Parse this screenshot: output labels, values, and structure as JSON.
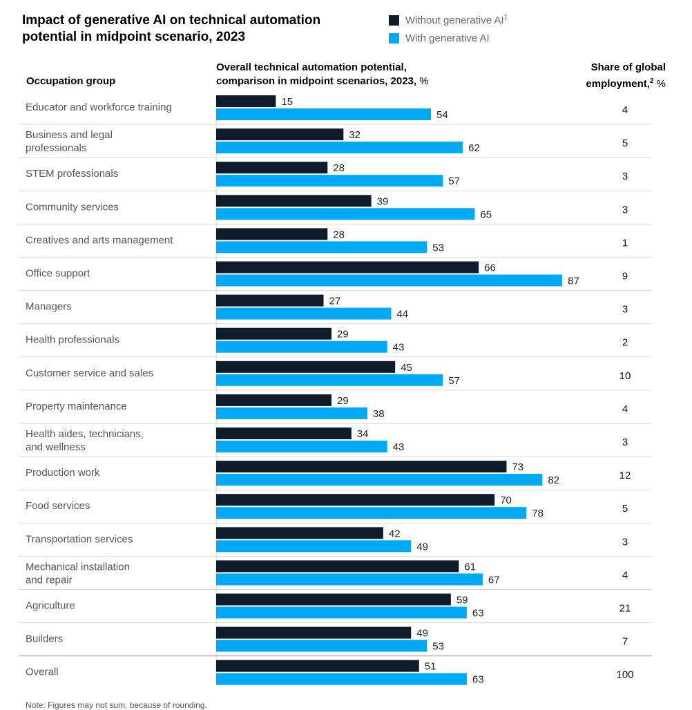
{
  "title": "Impact of generative AI on technical automation potential in midpoint scenario, 2023",
  "legend": [
    {
      "label": "Without generative AI",
      "sup": "1",
      "color": "#0e1c2b"
    },
    {
      "label": "With generative AI",
      "sup": "",
      "color": "#00a9f4"
    }
  ],
  "headers": {
    "occupation": "Occupation group",
    "potential": "Overall technical automation potential, comparison in midpoint scenarios, 2023,",
    "potential_unit": "%",
    "share": "Share of global employment,",
    "share_sup": "2",
    "share_unit": "%"
  },
  "chart_data": {
    "type": "bar",
    "orientation": "horizontal",
    "categories": [
      "Educator and workforce training",
      "Business and legal professionals",
      "STEM professionals",
      "Community services",
      "Creatives and arts management",
      "Office support",
      "Managers",
      "Health professionals",
      "Customer service and sales",
      "Property maintenance",
      "Health aides, technicians, and wellness",
      "Production work",
      "Food services",
      "Transportation services",
      "Mechanical installation and repair",
      "Agriculture",
      "Builders",
      "Overall"
    ],
    "series": [
      {
        "name": "Without generative AI",
        "color": "#0e1c2b",
        "values": [
          15,
          32,
          28,
          39,
          28,
          66,
          27,
          29,
          45,
          29,
          34,
          73,
          70,
          42,
          61,
          59,
          49,
          51
        ]
      },
      {
        "name": "With generative AI",
        "color": "#00a9f4",
        "values": [
          54,
          62,
          57,
          65,
          53,
          87,
          44,
          43,
          57,
          38,
          43,
          82,
          78,
          49,
          67,
          63,
          53,
          63
        ]
      }
    ],
    "share_of_global_employment": [
      4,
      5,
      3,
      3,
      1,
      9,
      3,
      2,
      10,
      4,
      3,
      12,
      5,
      3,
      4,
      21,
      7,
      100
    ],
    "xlim": [
      0,
      100
    ],
    "grid": false,
    "data_labels": true
  },
  "footnote": "Note: Figures may not sum, because of rounding."
}
